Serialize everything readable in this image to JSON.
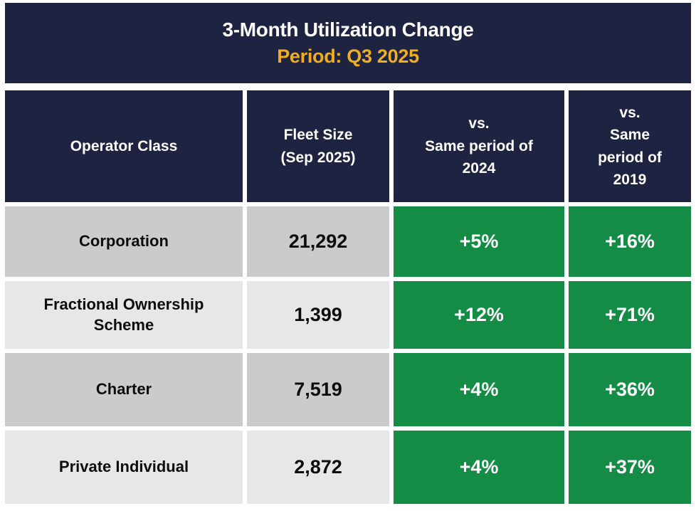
{
  "banner": {
    "title": "3-Month Utilization Change",
    "subtitle": "Period: Q3 2025"
  },
  "table": {
    "headers": {
      "operator_class": "Operator Class",
      "fleet_size": "Fleet Size\n(Sep 2025)",
      "vs_2024": "vs.\nSame period of\n2024",
      "vs_2019": "vs.\nSame\nperiod of\n2019"
    },
    "rows": [
      {
        "operator_class": "Corporation",
        "fleet_size": "21,292",
        "vs_2024": "+5%",
        "vs_2019": "+16%"
      },
      {
        "operator_class": "Fractional Ownership\nScheme",
        "fleet_size": "1,399",
        "vs_2024": "+12%",
        "vs_2019": "+71%"
      },
      {
        "operator_class": "Charter",
        "fleet_size": "7,519",
        "vs_2024": "+4%",
        "vs_2019": "+36%"
      },
      {
        "operator_class": "Private Individual",
        "fleet_size": "2,872",
        "vs_2024": "+4%",
        "vs_2019": "+37%"
      }
    ]
  },
  "colors": {
    "navy": "#1e2342",
    "green": "#158c45",
    "gold": "#efae1f",
    "row_gray_dark": "#cbcbcd",
    "row_gray_light": "#e7e7e9"
  },
  "chart_data": {
    "type": "table",
    "title": "3-Month Utilization Change",
    "subtitle": "Period: Q3 2025",
    "columns": [
      "Operator Class",
      "Fleet Size (Sep 2025)",
      "vs. Same period of 2024",
      "vs. Same period of 2019"
    ],
    "rows": [
      [
        "Corporation",
        21292,
        "+5%",
        "+16%"
      ],
      [
        "Fractional Ownership Scheme",
        1399,
        "+12%",
        "+71%"
      ],
      [
        "Charter",
        7519,
        "+4%",
        "+36%"
      ],
      [
        "Private Individual",
        2872,
        "+4%",
        "+37%"
      ]
    ]
  }
}
